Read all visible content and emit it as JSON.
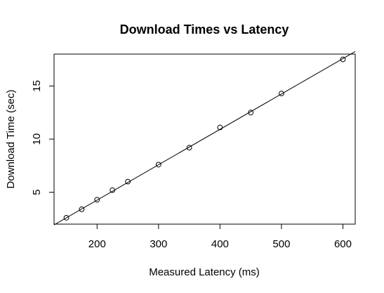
{
  "chart_data": {
    "type": "scatter",
    "title": "Download Times vs Latency",
    "xlabel": "Measured Latency (ms)",
    "ylabel": "Download Time (sec)",
    "xlim": [
      130,
      620
    ],
    "ylim": [
      2.0,
      18.0
    ],
    "x_ticks": [
      200,
      300,
      400,
      500,
      600
    ],
    "y_ticks": [
      5,
      10,
      15
    ],
    "x": [
      150,
      175,
      200,
      225,
      250,
      300,
      350,
      400,
      450,
      500,
      600
    ],
    "y": [
      2.6,
      3.4,
      4.3,
      5.2,
      6.0,
      7.6,
      9.2,
      11.1,
      12.5,
      14.3,
      17.5
    ],
    "fit_line": {
      "intercept": -2.4,
      "slope": 0.0333
    },
    "grid": false,
    "legend": "none"
  }
}
